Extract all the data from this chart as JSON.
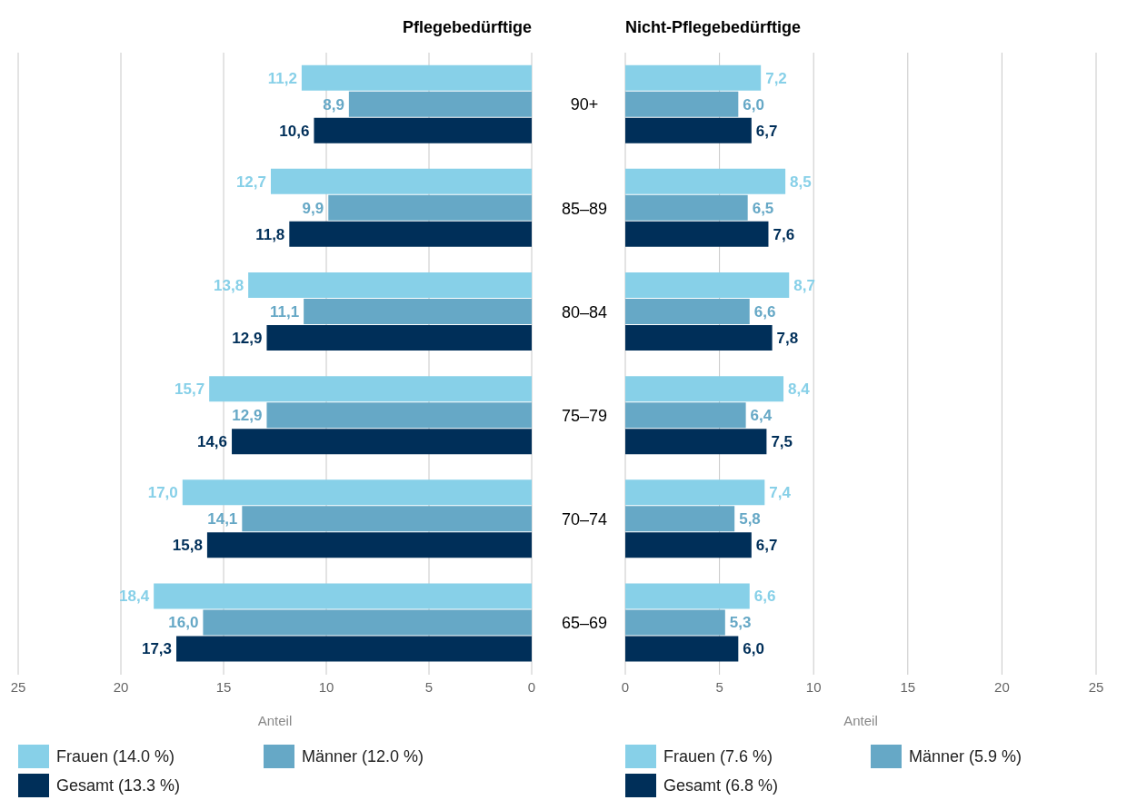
{
  "chart_data": [
    {
      "type": "bar",
      "orientation": "horizontal",
      "title": "Pflegebedürftige",
      "xlabel": "Anteil",
      "categories": [
        "90+",
        "85–89",
        "80–84",
        "75–79",
        "70–74",
        "65–69"
      ],
      "series": [
        {
          "name": "Frauen (14.0 %)",
          "color": "#87d0e8",
          "values": [
            11.2,
            12.7,
            13.8,
            15.7,
            17.0,
            18.4
          ],
          "value_labels": [
            "11,2",
            "12,7",
            "13,8",
            "15,7",
            "17,0",
            "18,4"
          ]
        },
        {
          "name": "Männer (12.0 %)",
          "color": "#66a8c6",
          "values": [
            8.9,
            9.9,
            11.1,
            12.9,
            14.1,
            16.0
          ],
          "value_labels": [
            "8,9",
            "9,9",
            "11,1",
            "12,9",
            "14,1",
            "16,0"
          ]
        },
        {
          "name": "Gesamt (13.3 %)",
          "color": "#002f59",
          "values": [
            10.6,
            11.8,
            12.9,
            14.6,
            15.8,
            17.3
          ],
          "value_labels": [
            "10,6",
            "11,8",
            "12,9",
            "14,6",
            "15,8",
            "17,3"
          ]
        }
      ],
      "xlim": [
        25,
        0
      ],
      "xticks": [
        25,
        20,
        15,
        10,
        5,
        0
      ],
      "grid": "x",
      "legend": "bottom"
    },
    {
      "type": "bar",
      "orientation": "horizontal",
      "title": "Nicht-Pflegebedürftige",
      "xlabel": "Anteil",
      "categories": [
        null,
        null,
        null,
        null,
        null,
        null
      ],
      "series": [
        {
          "name": "Frauen (7.6 %)",
          "color": "#87d0e8",
          "values": [
            7.2,
            8.5,
            8.7,
            8.4,
            7.4,
            6.6
          ],
          "value_labels": [
            "7,2",
            "8,5",
            "8,7",
            "8,4",
            "7,4",
            "6,6"
          ]
        },
        {
          "name": "Männer (5.9 %)",
          "color": "#66a8c6",
          "values": [
            6.0,
            6.5,
            6.6,
            6.4,
            5.8,
            5.3
          ],
          "value_labels": [
            "6,0",
            "6,5",
            "6,6",
            "6,4",
            "5,8",
            "5,3"
          ]
        },
        {
          "name": "Gesamt (6.8 %)",
          "color": "#002f59",
          "values": [
            6.7,
            7.6,
            7.8,
            7.5,
            6.7,
            6.0
          ],
          "value_labels": [
            "6,7",
            "7,6",
            "7,8",
            "7,5",
            "6,7",
            "6,0"
          ]
        }
      ],
      "xlim": [
        0,
        25
      ],
      "xticks": [
        0,
        5,
        10,
        15,
        20,
        25
      ],
      "grid": "x",
      "legend": "bottom",
      "tick_labels": "x"
    }
  ]
}
